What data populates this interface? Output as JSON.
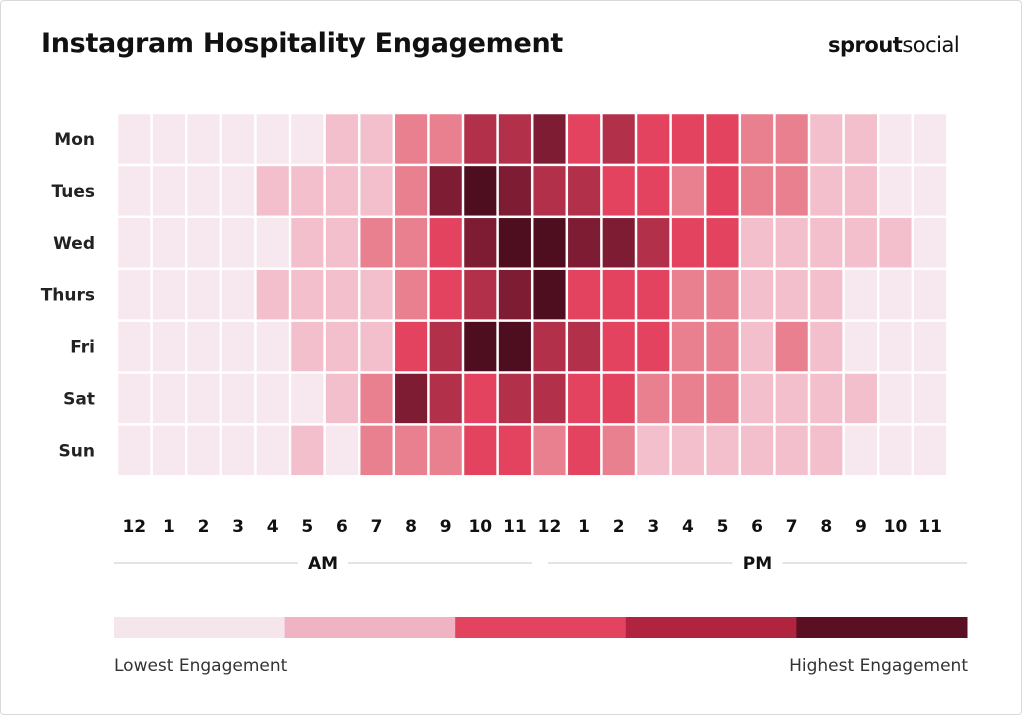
{
  "header": {
    "title": "Instagram Hospitality Engagement",
    "brand_bold": "sprout",
    "brand_light": "social"
  },
  "legend": {
    "low_label": "Lowest Engagement",
    "high_label": "Highest Engagement",
    "colors": [
      "#f5e6ec",
      "#f0b3c3",
      "#e4435f",
      "#b02440",
      "#5a0f22"
    ]
  },
  "chart_data": {
    "type": "heatmap",
    "title": "Instagram Hospitality Engagement",
    "rows": [
      "Mon",
      "Tues",
      "Wed",
      "Thurs",
      "Fri",
      "Sat",
      "Sun"
    ],
    "columns": [
      "12",
      "1",
      "2",
      "3",
      "4",
      "5",
      "6",
      "7",
      "8",
      "9",
      "10",
      "11",
      "12",
      "1",
      "2",
      "3",
      "4",
      "5",
      "6",
      "7",
      "8",
      "9",
      "10",
      "11"
    ],
    "column_groups": [
      {
        "label": "AM",
        "from": 0,
        "to": 11
      },
      {
        "label": "PM",
        "from": 12,
        "to": 23
      }
    ],
    "scale": {
      "min": 0,
      "max": 9
    },
    "values": [
      [
        0,
        0,
        0,
        0,
        0,
        0,
        2,
        2,
        4,
        4,
        7,
        7,
        8,
        6,
        7,
        6,
        6,
        6,
        4,
        4,
        2,
        2,
        0,
        0
      ],
      [
        0,
        0,
        0,
        0,
        2,
        2,
        2,
        2,
        4,
        8,
        9,
        8,
        7,
        7,
        6,
        6,
        4,
        6,
        4,
        4,
        2,
        2,
        0,
        0
      ],
      [
        0,
        0,
        0,
        0,
        0,
        2,
        2,
        4,
        4,
        6,
        8,
        9,
        9,
        8,
        8,
        7,
        6,
        6,
        2,
        2,
        2,
        2,
        2,
        0
      ],
      [
        0,
        0,
        0,
        0,
        2,
        2,
        2,
        2,
        4,
        6,
        7,
        8,
        9,
        6,
        6,
        6,
        4,
        4,
        2,
        2,
        2,
        0,
        0,
        0
      ],
      [
        0,
        0,
        0,
        0,
        0,
        2,
        2,
        2,
        6,
        7,
        9,
        9,
        7,
        7,
        6,
        6,
        4,
        4,
        2,
        4,
        2,
        0,
        0,
        0
      ],
      [
        0,
        0,
        0,
        0,
        0,
        0,
        2,
        4,
        8,
        7,
        6,
        7,
        7,
        6,
        6,
        4,
        4,
        4,
        2,
        2,
        2,
        2,
        0,
        0
      ],
      [
        0,
        0,
        0,
        0,
        0,
        2,
        0,
        4,
        4,
        4,
        6,
        6,
        4,
        6,
        4,
        2,
        2,
        2,
        2,
        2,
        2,
        0,
        0,
        0
      ]
    ],
    "value_colors": {
      "0": "#f6e8ee",
      "2": "#f3bfcc",
      "4": "#e8808f",
      "6": "#e4435f",
      "7": "#b3304a",
      "8": "#7d1c33",
      "9": "#4e0e1f"
    },
    "legend_labels": [
      "Lowest Engagement",
      "Highest Engagement"
    ],
    "grid": false
  }
}
